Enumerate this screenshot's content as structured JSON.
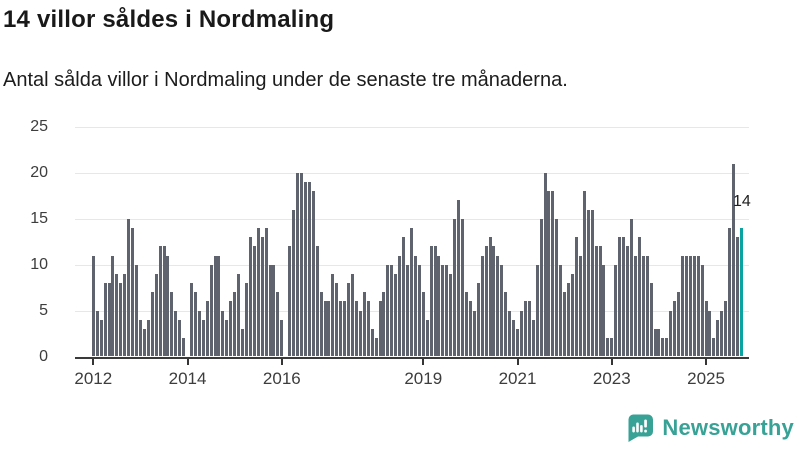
{
  "title": "14 villor såldes i Nordmaling",
  "subtitle": "Antal sålda villor i Nordmaling under de senaste tre månaderna.",
  "chart_data": {
    "type": "bar",
    "title": "14 villor såldes i Nordmaling",
    "xlabel": "",
    "ylabel": "",
    "period": "monthly",
    "start_month": "2012-01",
    "end_month": "2025-10",
    "ylim": [
      0,
      25
    ],
    "y_ticks": [
      0,
      5,
      10,
      15,
      20,
      25
    ],
    "grid": true,
    "legend": false,
    "bar_color": "#5e636d",
    "x_ticks": [
      {
        "label": "2012",
        "month_index": 0
      },
      {
        "label": "2014",
        "month_index": 24
      },
      {
        "label": "2016",
        "month_index": 48
      },
      {
        "label": "2019",
        "month_index": 84
      },
      {
        "label": "2021",
        "month_index": 108
      },
      {
        "label": "2023",
        "month_index": 132
      },
      {
        "label": "2025",
        "month_index": 156
      }
    ],
    "values": [
      11,
      5,
      4,
      8,
      8,
      11,
      9,
      8,
      9,
      15,
      14,
      10,
      4,
      3,
      4,
      7,
      9,
      12,
      12,
      11,
      7,
      5,
      4,
      2,
      0,
      8,
      7,
      5,
      4,
      6,
      10,
      11,
      11,
      5,
      4,
      6,
      7,
      9,
      3,
      8,
      13,
      12,
      14,
      13,
      14,
      10,
      10,
      7,
      4,
      0,
      12,
      16,
      20,
      20,
      19,
      19,
      18,
      12,
      7,
      6,
      6,
      9,
      8,
      6,
      6,
      8,
      9,
      6,
      5,
      7,
      6,
      3,
      2,
      6,
      7,
      10,
      10,
      9,
      11,
      13,
      10,
      14,
      11,
      10,
      7,
      4,
      12,
      12,
      11,
      10,
      10,
      9,
      15,
      17,
      15,
      7,
      6,
      5,
      8,
      11,
      12,
      13,
      12,
      11,
      10,
      7,
      5,
      4,
      3,
      5,
      6,
      6,
      4,
      10,
      15,
      20,
      18,
      18,
      15,
      10,
      7,
      8,
      9,
      13,
      11,
      18,
      16,
      16,
      12,
      12,
      10,
      2,
      2,
      10,
      13,
      13,
      12,
      15,
      11,
      13,
      11,
      11,
      8,
      3,
      3,
      2,
      2,
      5,
      6,
      7,
      11,
      11,
      11,
      11,
      11,
      10,
      6,
      5,
      2,
      4,
      5,
      6,
      14,
      21,
      13,
      14
    ],
    "highlight": {
      "index": 165,
      "value": 14,
      "label": "14",
      "color": "#0ba3a1"
    }
  },
  "branding": {
    "logo_text": "Newsworthy",
    "brand_color": "#38a296",
    "icon": "bar-chart-speech-bubble"
  }
}
